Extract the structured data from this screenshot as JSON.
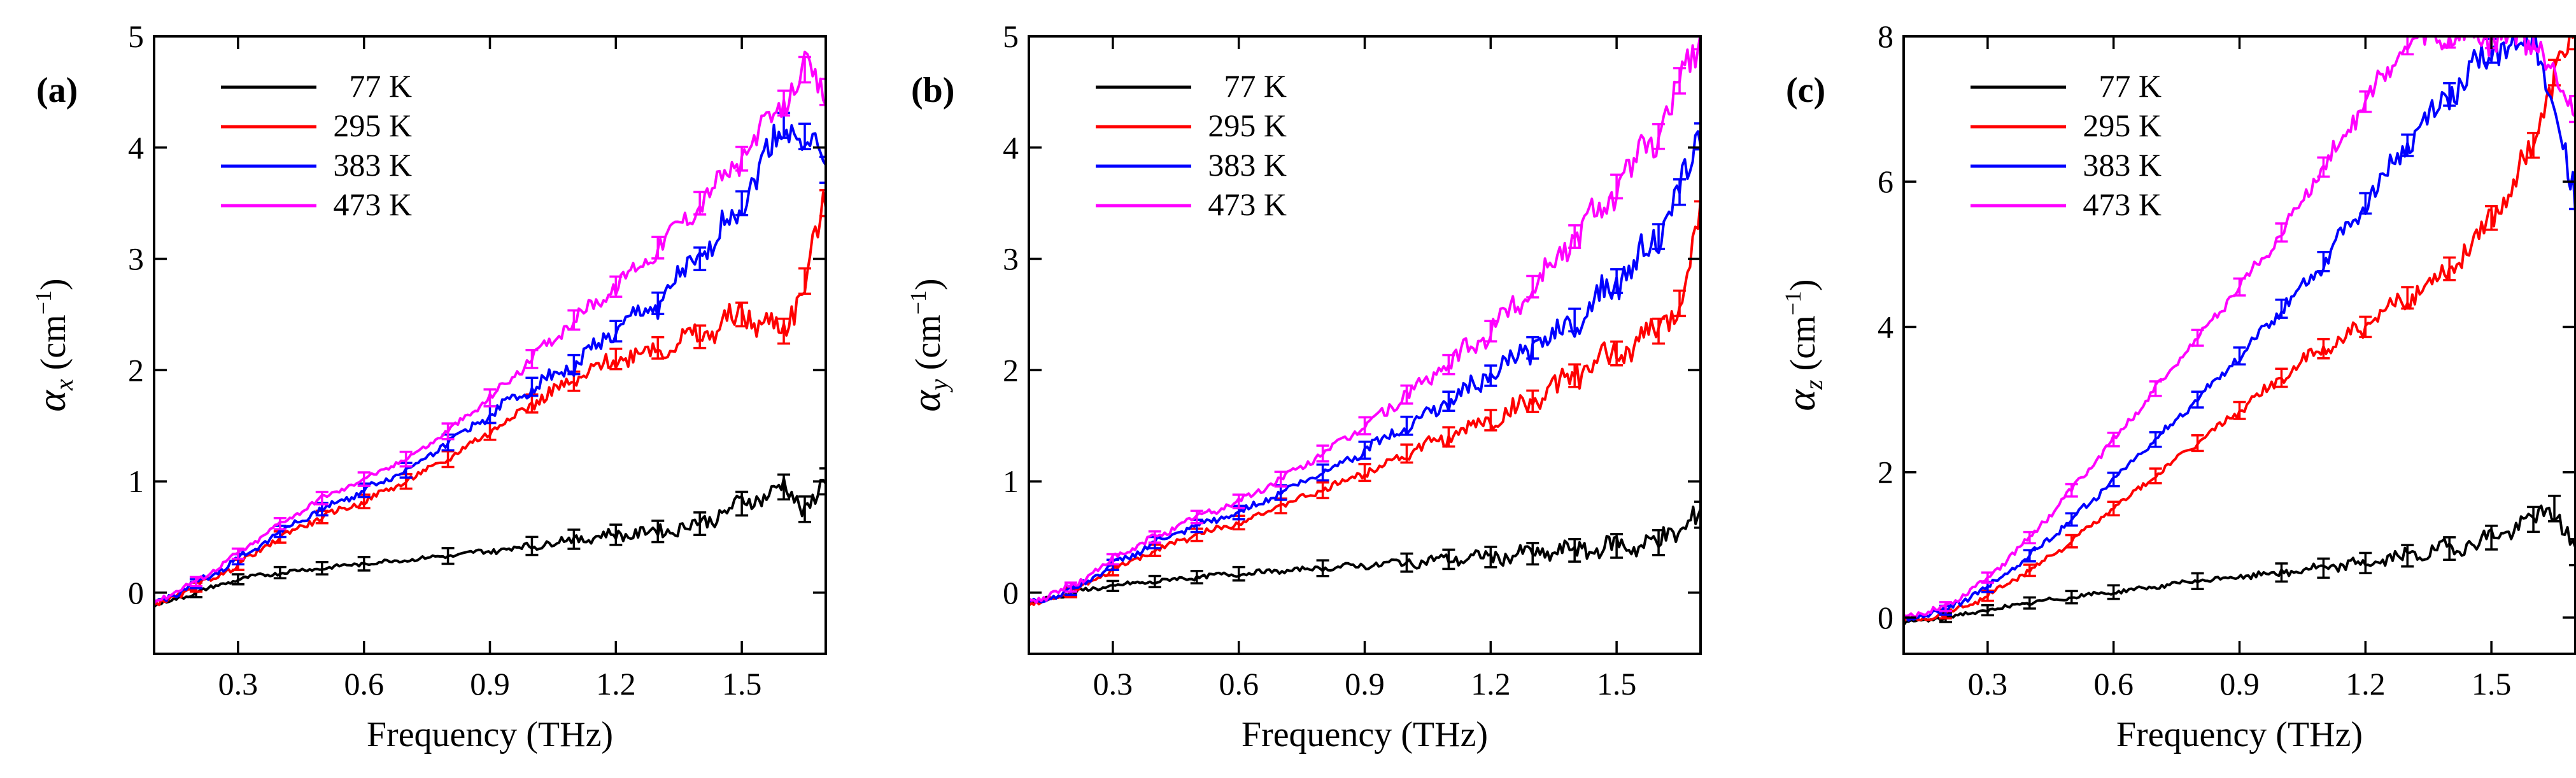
{
  "figure": {
    "x_label": "Frequency (THz)"
  },
  "chart_data": [
    {
      "type": "line",
      "panel": "(a)",
      "ylabel_symbol": "α",
      "ylabel_sub": "x",
      "ylabel_units_pre": " (cm",
      "ylabel_units_sup": "−1",
      "ylabel_units_post": ")",
      "xlabel": "Frequency (THz)",
      "xlim": [
        0.1,
        1.7
      ],
      "ylim": [
        -0.55,
        5
      ],
      "xticks": [
        0.3,
        0.6,
        0.9,
        1.2,
        1.5
      ],
      "xtick_labels": [
        "0.3",
        "0.6",
        "0.9",
        "1.2",
        "1.5"
      ],
      "yticks": [
        0,
        1,
        2,
        3,
        4,
        5
      ],
      "ytick_labels": [
        "0",
        "1",
        "2",
        "3",
        "4",
        "5"
      ],
      "legend_position": "top-left",
      "series": [
        {
          "name": "77 K",
          "color": "#000000",
          "noise": 0.05,
          "x": [
            0.1,
            0.2,
            0.3,
            0.4,
            0.5,
            0.6,
            0.8,
            1.0,
            1.1,
            1.2,
            1.3,
            1.4,
            1.5,
            1.6,
            1.65,
            1.7
          ],
          "y": [
            -0.12,
            0.0,
            0.12,
            0.18,
            0.22,
            0.26,
            0.33,
            0.42,
            0.48,
            0.52,
            0.55,
            0.62,
            0.8,
            0.95,
            0.75,
            1.0
          ]
        },
        {
          "name": "295 K",
          "color": "#ff0000",
          "noise": 0.08,
          "x": [
            0.1,
            0.2,
            0.3,
            0.4,
            0.5,
            0.6,
            0.7,
            0.8,
            0.9,
            1.0,
            1.1,
            1.2,
            1.3,
            1.4,
            1.5,
            1.6,
            1.65,
            1.7
          ],
          "y": [
            -0.12,
            0.05,
            0.25,
            0.5,
            0.68,
            0.82,
            1.0,
            1.2,
            1.45,
            1.7,
            1.9,
            2.1,
            2.2,
            2.3,
            2.5,
            2.35,
            2.8,
            3.5
          ]
        },
        {
          "name": "383 K",
          "color": "#0000ff",
          "noise": 0.09,
          "x": [
            0.1,
            0.2,
            0.3,
            0.4,
            0.5,
            0.6,
            0.7,
            0.8,
            0.9,
            1.0,
            1.1,
            1.2,
            1.3,
            1.4,
            1.5,
            1.6,
            1.65,
            1.7
          ],
          "y": [
            -0.1,
            0.08,
            0.3,
            0.55,
            0.75,
            0.92,
            1.1,
            1.35,
            1.6,
            1.85,
            2.05,
            2.35,
            2.6,
            3.0,
            3.5,
            4.2,
            4.1,
            3.8
          ]
        },
        {
          "name": "473 K",
          "color": "#ff00ff",
          "noise": 0.07,
          "x": [
            0.1,
            0.2,
            0.3,
            0.4,
            0.5,
            0.6,
            0.7,
            0.8,
            0.9,
            1.0,
            1.1,
            1.2,
            1.3,
            1.4,
            1.5,
            1.6,
            1.65,
            1.7
          ],
          "y": [
            -0.08,
            0.1,
            0.35,
            0.62,
            0.85,
            1.02,
            1.2,
            1.45,
            1.75,
            2.1,
            2.45,
            2.75,
            3.1,
            3.5,
            3.9,
            4.4,
            4.7,
            4.5
          ]
        }
      ]
    },
    {
      "type": "line",
      "panel": "(b)",
      "ylabel_symbol": "α",
      "ylabel_sub": "y",
      "ylabel_units_pre": " (cm",
      "ylabel_units_sup": "−1",
      "ylabel_units_post": ")",
      "xlabel": "Frequency (THz)",
      "xlim": [
        0.1,
        1.7
      ],
      "ylim": [
        -0.55,
        5
      ],
      "xticks": [
        0.3,
        0.6,
        0.9,
        1.2,
        1.5
      ],
      "xtick_labels": [
        "0.3",
        "0.6",
        "0.9",
        "1.2",
        "1.5"
      ],
      "yticks": [
        0,
        1,
        2,
        3,
        4,
        5
      ],
      "ytick_labels": [
        "0",
        "1",
        "2",
        "3",
        "4",
        "5"
      ],
      "legend_position": "top-left",
      "series": [
        {
          "name": "77 K",
          "color": "#000000",
          "noise": 0.06,
          "x": [
            0.1,
            0.2,
            0.3,
            0.4,
            0.5,
            0.6,
            0.8,
            1.0,
            1.1,
            1.2,
            1.3,
            1.4,
            1.5,
            1.6,
            1.7
          ],
          "y": [
            -0.1,
            0.0,
            0.06,
            0.1,
            0.14,
            0.17,
            0.22,
            0.27,
            0.3,
            0.32,
            0.35,
            0.38,
            0.42,
            0.45,
            0.7
          ]
        },
        {
          "name": "295 K",
          "color": "#ff0000",
          "noise": 0.08,
          "x": [
            0.1,
            0.2,
            0.3,
            0.4,
            0.5,
            0.6,
            0.7,
            0.8,
            0.9,
            1.0,
            1.1,
            1.2,
            1.3,
            1.4,
            1.5,
            1.6,
            1.65,
            1.7
          ],
          "y": [
            -0.12,
            0.0,
            0.2,
            0.38,
            0.52,
            0.63,
            0.78,
            0.92,
            1.08,
            1.25,
            1.4,
            1.55,
            1.72,
            1.95,
            2.15,
            2.35,
            2.6,
            3.4
          ]
        },
        {
          "name": "383 K",
          "color": "#0000ff",
          "noise": 0.09,
          "x": [
            0.1,
            0.2,
            0.3,
            0.4,
            0.5,
            0.6,
            0.7,
            0.8,
            0.9,
            1.0,
            1.1,
            1.2,
            1.3,
            1.4,
            1.5,
            1.6,
            1.65,
            1.7
          ],
          "y": [
            -0.1,
            0.02,
            0.25,
            0.45,
            0.6,
            0.72,
            0.9,
            1.08,
            1.28,
            1.5,
            1.72,
            1.95,
            2.2,
            2.45,
            2.8,
            3.2,
            3.6,
            4.1
          ]
        },
        {
          "name": "473 K",
          "color": "#ff00ff",
          "noise": 0.1,
          "x": [
            0.1,
            0.2,
            0.3,
            0.4,
            0.5,
            0.6,
            0.7,
            0.8,
            0.9,
            1.0,
            1.1,
            1.2,
            1.3,
            1.4,
            1.5,
            1.6,
            1.65,
            1.7
          ],
          "y": [
            -0.08,
            0.05,
            0.3,
            0.5,
            0.68,
            0.82,
            1.02,
            1.25,
            1.5,
            1.78,
            2.05,
            2.35,
            2.75,
            3.2,
            3.65,
            4.1,
            4.6,
            5.0
          ]
        }
      ]
    },
    {
      "type": "line",
      "panel": "(c)",
      "ylabel_symbol": "α",
      "ylabel_sub": "z",
      "ylabel_units_pre": " (cm",
      "ylabel_units_sup": "−1",
      "ylabel_units_post": ")",
      "xlabel": "Frequency (THz)",
      "xlim": [
        0.1,
        1.7
      ],
      "ylim": [
        -0.5,
        8
      ],
      "xticks": [
        0.3,
        0.6,
        0.9,
        1.2,
        1.5
      ],
      "xtick_labels": [
        "0.3",
        "0.6",
        "0.9",
        "1.2",
        "1.5"
      ],
      "yticks": [
        0,
        2,
        4,
        6,
        8
      ],
      "ytick_labels": [
        "0",
        "2",
        "4",
        "6",
        "8"
      ],
      "legend_position": "top-left",
      "series": [
        {
          "name": "77 K",
          "color": "#000000",
          "noise": 0.08,
          "x": [
            0.1,
            0.2,
            0.3,
            0.4,
            0.5,
            0.6,
            0.8,
            1.0,
            1.1,
            1.2,
            1.3,
            1.4,
            1.5,
            1.6,
            1.65,
            1.7
          ],
          "y": [
            -0.08,
            0.0,
            0.1,
            0.2,
            0.28,
            0.35,
            0.5,
            0.62,
            0.68,
            0.75,
            0.85,
            0.95,
            1.1,
            1.35,
            1.5,
            0.9
          ]
        },
        {
          "name": "295 K",
          "color": "#ff0000",
          "noise": 0.12,
          "x": [
            0.1,
            0.2,
            0.3,
            0.4,
            0.5,
            0.6,
            0.7,
            0.8,
            0.9,
            1.0,
            1.1,
            1.2,
            1.3,
            1.4,
            1.5,
            1.6,
            1.65,
            1.7
          ],
          "y": [
            -0.05,
            0.05,
            0.3,
            0.65,
            1.05,
            1.5,
            1.95,
            2.4,
            2.85,
            3.3,
            3.7,
            4.0,
            4.4,
            4.8,
            5.5,
            6.5,
            7.5,
            8.0
          ]
        },
        {
          "name": "383 K",
          "color": "#0000ff",
          "noise": 0.14,
          "x": [
            0.1,
            0.2,
            0.3,
            0.4,
            0.5,
            0.6,
            0.7,
            0.8,
            0.9,
            1.0,
            1.1,
            1.2,
            1.3,
            1.4,
            1.5,
            1.6,
            1.7
          ],
          "y": [
            -0.03,
            0.1,
            0.42,
            0.85,
            1.35,
            1.9,
            2.45,
            3.0,
            3.6,
            4.25,
            4.9,
            5.7,
            6.5,
            7.2,
            7.8,
            8.0,
            5.8
          ]
        },
        {
          "name": "473 K",
          "color": "#ff00ff",
          "noise": 0.14,
          "x": [
            0.1,
            0.2,
            0.3,
            0.4,
            0.5,
            0.6,
            0.7,
            0.8,
            0.9,
            1.0,
            1.1,
            1.2,
            1.3,
            1.4,
            1.5,
            1.6,
            1.7
          ],
          "y": [
            0.0,
            0.15,
            0.55,
            1.1,
            1.75,
            2.45,
            3.15,
            3.85,
            4.55,
            5.3,
            6.2,
            7.1,
            7.9,
            8.0,
            8.0,
            8.0,
            7.0
          ]
        }
      ]
    }
  ]
}
